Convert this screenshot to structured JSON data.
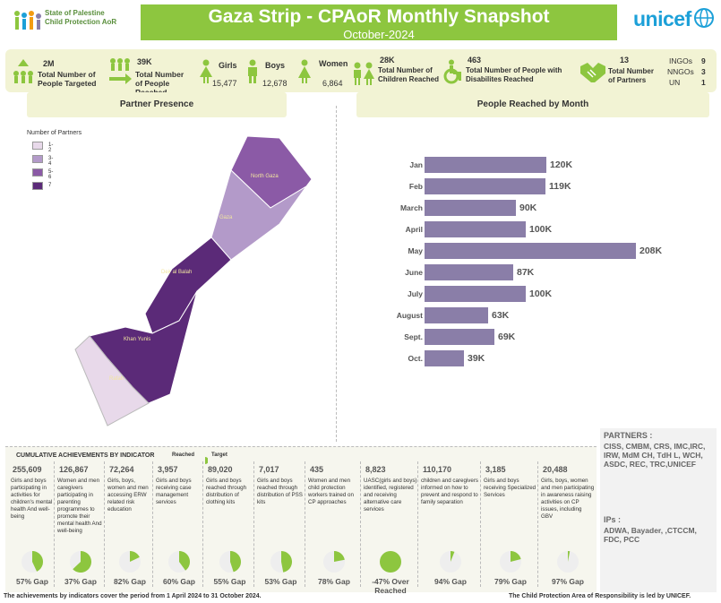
{
  "header": {
    "logo_line1": "State of Palestine",
    "logo_line2": "Child Protection AoR",
    "title": "Gaza Strip - CPAoR Monthly Snapshot",
    "subtitle": "October-2024",
    "unicef": "unicef"
  },
  "kpis": {
    "targeted_value": "2M",
    "targeted_label": "Total Number of People Targeted",
    "reached_value": "39K",
    "reached_label": "Total Number of People Reached",
    "girls_label": "Girls",
    "girls_value": "15,477",
    "boys_label": "Boys",
    "boys_value": "12,678",
    "women_label": "Women",
    "women_value": "6,864",
    "children_value": "28K",
    "children_label": "Total Number of Children Reached",
    "disab_value": "463",
    "disab_label": "Total Number of People with Disabilites Reached",
    "partners_value": "13",
    "partners_label": "Total Number of Partners",
    "ingos_label": "INGOs",
    "ingos_value": "9",
    "nngos_label": "NNGOs",
    "nngos_value": "3",
    "un_label": "UN",
    "un_value": "1"
  },
  "partner_presence": {
    "title": "Partner Presence",
    "legend_title": "Number of Partners",
    "legend": [
      "1-2",
      "3-4",
      "5-6",
      "7"
    ],
    "legend_colors": [
      "#e8d9ea",
      "#b39ac9",
      "#8b5aa6",
      "#5b2a78"
    ],
    "regions": [
      "North Gaza",
      "Gaza",
      "Deir al Balah",
      "Khan Yunis",
      "Rafah"
    ]
  },
  "chart_data": {
    "type": "bar",
    "title": "People Reached by Month",
    "categories": [
      "Jan",
      "Feb",
      "March",
      "April",
      "May",
      "June",
      "July",
      "August",
      "Sept.",
      "Oct."
    ],
    "values": [
      120,
      119,
      90,
      100,
      208,
      87,
      100,
      63,
      69,
      39
    ],
    "labels": [
      "120K",
      "119K",
      "90K",
      "100K",
      "208K",
      "87K",
      "100K",
      "63K",
      "69K",
      "39K"
    ],
    "orientation": "horizontal",
    "xlim": [
      0,
      208
    ]
  },
  "achievements": {
    "title": "CUMULATIVE ACHIEVEMENTS BY INDICATOR",
    "legend_reached": "Reached",
    "legend_target": "Target",
    "indicators": [
      {
        "value": "255,609",
        "desc": "Girls and boys participating in activities for children's mental health And well-being",
        "gap": "57% Gap",
        "pct": 43
      },
      {
        "value": "126,867",
        "desc": "Women and men caregivers participating in parenting programmes to promote their mental health And well-being",
        "gap": "37% Gap",
        "pct": 63
      },
      {
        "value": "72,264",
        "desc": "Girls, boys, women and men accessing ERW related risk education",
        "gap": "82% Gap",
        "pct": 18
      },
      {
        "value": "3,957",
        "desc": "Girls and boys receiving case management services",
        "gap": "60% Gap",
        "pct": 40
      },
      {
        "value": "89,020",
        "desc": "Girls and boys reached through distribution of clothing kits",
        "gap": "55% Gap",
        "pct": 45
      },
      {
        "value": "7,017",
        "desc": "Girls and boys reached through distribution of PSS kits",
        "gap": "53% Gap",
        "pct": 47
      },
      {
        "value": "435",
        "desc": "Women and men child protection workers trained on CP approaches",
        "gap": "78% Gap",
        "pct": 22
      },
      {
        "value": "8,823",
        "desc": "UASC(girls and boys) identified, registered and receiving alternative care services",
        "gap": "-47% Over Reached",
        "pct": 100
      },
      {
        "value": "110,170",
        "desc": "children and caregivers informed on how to prevent and respond to family separation",
        "gap": "94% Gap",
        "pct": 6
      },
      {
        "value": "3,185",
        "desc": "Girls and boys receiving Specialized Services",
        "gap": "79% Gap",
        "pct": 21
      },
      {
        "value": "20,488",
        "desc": "Girls, boys, women and men participating in awareness raising activities on CP issues, including GBV",
        "gap": "97% Gap",
        "pct": 3
      }
    ]
  },
  "partners": {
    "title": "PARTNERS :",
    "list": "CISS, CMBM, CRS, IMC,IRC, IRW, MdM CH, TdH L, WCH, ASDC, REC, TRC,UNICEF",
    "ips_title": "IPs :",
    "ips": "ADWA, Bayader, ,CTCCM, FDC, PCC"
  },
  "footer": {
    "left": "The achievements by indicators cover the period from 1 April 2024 to 31 October 2024.",
    "right": "The Child Protection Area of Responsibility is led by UNICEF."
  }
}
